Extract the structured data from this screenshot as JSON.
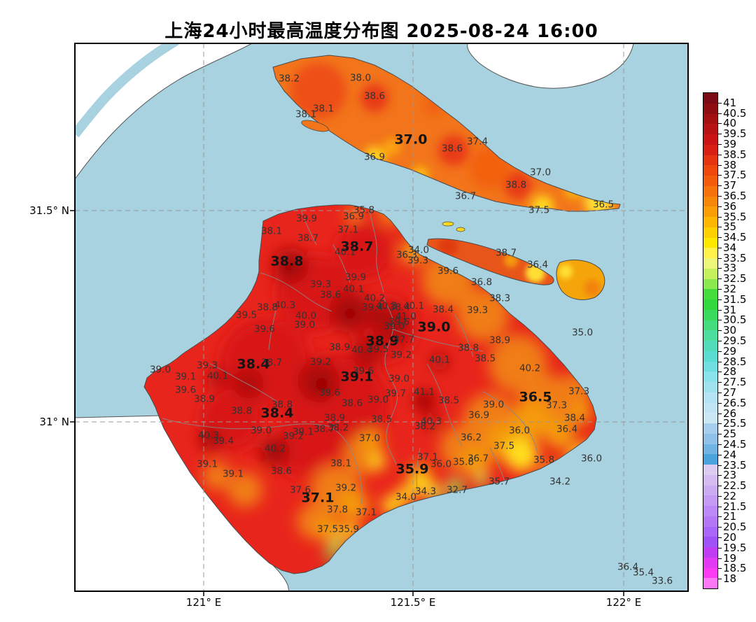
{
  "chart_data": {
    "type": "contour-map",
    "title": "上海24小时最高温度分布图 2025-08-24 16:00",
    "region": "Shanghai",
    "unit": "°C",
    "axes": {
      "x_ticks": [
        {
          "label": "121° E",
          "x": 291
        },
        {
          "label": "121.5° E",
          "x": 590
        },
        {
          "label": "122° E",
          "x": 891
        }
      ],
      "y_ticks": [
        {
          "label": "31.5° N",
          "y": 301
        },
        {
          "label": "31° N",
          "y": 603
        }
      ]
    },
    "colorbar": {
      "min": 18,
      "max": 41,
      "step": 0.5,
      "tick_labels": [
        "41",
        "40.5",
        "40",
        "39.5",
        "39",
        "38.5",
        "38",
        "37.5",
        "37",
        "36.5",
        "36",
        "35.5",
        "35",
        "34.5",
        "34",
        "33.5",
        "33",
        "32.5",
        "32",
        "31.5",
        "31",
        "30.5",
        "30",
        "29.5",
        "29",
        "28.5",
        "28",
        "27.5",
        "27",
        "26.5",
        "26",
        "25.5",
        "25",
        "24.5",
        "24",
        "23.5",
        "23",
        "22.5",
        "22",
        "21.5",
        "21",
        "20.5",
        "20",
        "19.5",
        "19",
        "18.5",
        "18"
      ],
      "colors": [
        "#7a0a14",
        "#8e0d10",
        "#a31010",
        "#b81313",
        "#cb1515",
        "#da2013",
        "#e73410",
        "#ee480d",
        "#f25c0b",
        "#f5730a",
        "#f78708",
        "#fa9e05",
        "#fcb703",
        "#fdd101",
        "#ffe800",
        "#fff24b",
        "#eef878",
        "#c4f05e",
        "#8ae94e",
        "#45dd3b",
        "#30d83d",
        "#3ada5d",
        "#44dc7d",
        "#4ddd9c",
        "#52dcb9",
        "#5bdcd1",
        "#70dfe1",
        "#8ae3ea",
        "#a0e3ef",
        "#b4e3f3",
        "#c2e5f6",
        "#cce8f7",
        "#a6cfee",
        "#8fc2e9",
        "#6fb4e3",
        "#48a4db",
        "#ddccf1",
        "#d5bbf2",
        "#cdabf3",
        "#c59af5",
        "#bd89f6",
        "#b478f7",
        "#aa66f8",
        "#a052f7",
        "#c03df3",
        "#e33af3",
        "#fb3af4",
        "#fc78f7"
      ]
    },
    "colors": {
      "water": "#a8d2df",
      "land_hot": "#e8251c",
      "outside_region": "#ffffff",
      "gridline": "#999999",
      "coastline": "#555555"
    },
    "stations": [
      {
        "t": "38.2",
        "x": 413,
        "y": 113
      },
      {
        "t": "38.0",
        "x": 515,
        "y": 112
      },
      {
        "t": "38.6",
        "x": 535,
        "y": 138
      },
      {
        "t": "38.1",
        "x": 437,
        "y": 164
      },
      {
        "t": "38.1",
        "x": 462,
        "y": 156
      },
      {
        "t": "37.0",
        "x": 587,
        "y": 200,
        "b": 1
      },
      {
        "t": "36.9",
        "x": 535,
        "y": 225
      },
      {
        "t": "38.6",
        "x": 646,
        "y": 213
      },
      {
        "t": "37.4",
        "x": 682,
        "y": 203
      },
      {
        "t": "37.0",
        "x": 772,
        "y": 247
      },
      {
        "t": "38.8",
        "x": 737,
        "y": 265
      },
      {
        "t": "36.7",
        "x": 665,
        "y": 281
      },
      {
        "t": "37.5",
        "x": 770,
        "y": 301
      },
      {
        "t": "36.5",
        "x": 862,
        "y": 293
      },
      {
        "t": "38.7",
        "x": 723,
        "y": 362
      },
      {
        "t": "36.4",
        "x": 768,
        "y": 379
      },
      {
        "t": "35.8",
        "x": 520,
        "y": 301
      },
      {
        "t": "36.9",
        "x": 505,
        "y": 310
      },
      {
        "t": "39.9",
        "x": 438,
        "y": 313
      },
      {
        "t": "37.1",
        "x": 497,
        "y": 329
      },
      {
        "t": "38.1",
        "x": 388,
        "y": 331
      },
      {
        "t": "38.7",
        "x": 440,
        "y": 341
      },
      {
        "t": "38.7",
        "x": 510,
        "y": 353,
        "b": 1
      },
      {
        "t": "40.1",
        "x": 493,
        "y": 361
      },
      {
        "t": "38.8",
        "x": 410,
        "y": 374,
        "b": 1
      },
      {
        "t": "34.0",
        "x": 598,
        "y": 358
      },
      {
        "t": "36.3",
        "x": 581,
        "y": 365
      },
      {
        "t": "39.3",
        "x": 597,
        "y": 373
      },
      {
        "t": "39.6",
        "x": 640,
        "y": 388
      },
      {
        "t": "39.9",
        "x": 508,
        "y": 397
      },
      {
        "t": "39.3",
        "x": 458,
        "y": 407
      },
      {
        "t": "40.1",
        "x": 505,
        "y": 414
      },
      {
        "t": "38.6",
        "x": 472,
        "y": 422
      },
      {
        "t": "36.8",
        "x": 688,
        "y": 404
      },
      {
        "t": "38.3",
        "x": 714,
        "y": 427
      },
      {
        "t": "40.2",
        "x": 535,
        "y": 427
      },
      {
        "t": "39.4",
        "x": 532,
        "y": 440
      },
      {
        "t": "40.3",
        "x": 552,
        "y": 438
      },
      {
        "t": "38.4",
        "x": 571,
        "y": 440
      },
      {
        "t": "40.1",
        "x": 591,
        "y": 438
      },
      {
        "t": "38.4",
        "x": 633,
        "y": 443
      },
      {
        "t": "39.3",
        "x": 682,
        "y": 444
      },
      {
        "t": "41.0",
        "x": 580,
        "y": 453
      },
      {
        "t": "39.6",
        "x": 570,
        "y": 461
      },
      {
        "t": "39.0",
        "x": 563,
        "y": 467
      },
      {
        "t": "39.0",
        "x": 620,
        "y": 468,
        "b": 1
      },
      {
        "t": "38.9",
        "x": 546,
        "y": 488,
        "b": 1
      },
      {
        "t": "37.7",
        "x": 577,
        "y": 486
      },
      {
        "t": "38.9",
        "x": 485,
        "y": 497
      },
      {
        "t": "40.4",
        "x": 517,
        "y": 501
      },
      {
        "t": "39.5",
        "x": 540,
        "y": 500
      },
      {
        "t": "39.2",
        "x": 573,
        "y": 508
      },
      {
        "t": "38.8",
        "x": 669,
        "y": 498
      },
      {
        "t": "40.1",
        "x": 628,
        "y": 515
      },
      {
        "t": "38.5",
        "x": 693,
        "y": 513
      },
      {
        "t": "38.9",
        "x": 714,
        "y": 487
      },
      {
        "t": "39.6",
        "x": 519,
        "y": 531
      },
      {
        "t": "39.1",
        "x": 510,
        "y": 539,
        "b": 1
      },
      {
        "t": "39.0",
        "x": 570,
        "y": 542
      },
      {
        "t": "38.8",
        "x": 382,
        "y": 440
      },
      {
        "t": "40.3",
        "x": 407,
        "y": 437
      },
      {
        "t": "39.5",
        "x": 352,
        "y": 451
      },
      {
        "t": "40.0",
        "x": 437,
        "y": 452
      },
      {
        "t": "39.0",
        "x": 435,
        "y": 465
      },
      {
        "t": "39.6",
        "x": 378,
        "y": 471
      },
      {
        "t": "39.3",
        "x": 296,
        "y": 523
      },
      {
        "t": "38.4",
        "x": 362,
        "y": 521,
        "b": 1
      },
      {
        "t": "38.7",
        "x": 388,
        "y": 519
      },
      {
        "t": "39.2",
        "x": 458,
        "y": 518
      },
      {
        "t": "39.0",
        "x": 229,
        "y": 529
      },
      {
        "t": "39.1",
        "x": 265,
        "y": 539
      },
      {
        "t": "40.1",
        "x": 311,
        "y": 538
      },
      {
        "t": "39.6",
        "x": 265,
        "y": 558
      },
      {
        "t": "38.9",
        "x": 292,
        "y": 571
      },
      {
        "t": "38.8",
        "x": 345,
        "y": 588
      },
      {
        "t": "38.8",
        "x": 403,
        "y": 579
      },
      {
        "t": "38.4",
        "x": 396,
        "y": 591,
        "b": 1
      },
      {
        "t": "38.9",
        "x": 478,
        "y": 598
      },
      {
        "t": "39.0",
        "x": 373,
        "y": 616
      },
      {
        "t": "39.1",
        "x": 433,
        "y": 618
      },
      {
        "t": "39.2",
        "x": 419,
        "y": 624
      },
      {
        "t": "38.7",
        "x": 463,
        "y": 614
      },
      {
        "t": "38.2",
        "x": 483,
        "y": 612
      },
      {
        "t": "40.3",
        "x": 298,
        "y": 623
      },
      {
        "t": "39.4",
        "x": 319,
        "y": 631
      },
      {
        "t": "40.2",
        "x": 393,
        "y": 642
      },
      {
        "t": "39.1",
        "x": 296,
        "y": 664
      },
      {
        "t": "39.1",
        "x": 333,
        "y": 678
      },
      {
        "t": "38.6",
        "x": 402,
        "y": 674
      },
      {
        "t": "39.6",
        "x": 471,
        "y": 562
      },
      {
        "t": "38.6",
        "x": 503,
        "y": 577
      },
      {
        "t": "39.0",
        "x": 540,
        "y": 572
      },
      {
        "t": "39.7",
        "x": 565,
        "y": 563
      },
      {
        "t": "41.1",
        "x": 606,
        "y": 561
      },
      {
        "t": "38.5",
        "x": 641,
        "y": 573
      },
      {
        "t": "38.5",
        "x": 545,
        "y": 600
      },
      {
        "t": "40.3",
        "x": 616,
        "y": 603
      },
      {
        "t": "38.2",
        "x": 607,
        "y": 610
      },
      {
        "t": "37.0",
        "x": 528,
        "y": 627
      },
      {
        "t": "38.1",
        "x": 487,
        "y": 663
      },
      {
        "t": "37.6",
        "x": 429,
        "y": 701
      },
      {
        "t": "39.2",
        "x": 494,
        "y": 698
      },
      {
        "t": "37.1",
        "x": 454,
        "y": 712,
        "b": 1
      },
      {
        "t": "37.8",
        "x": 482,
        "y": 729
      },
      {
        "t": "37.1",
        "x": 523,
        "y": 733
      },
      {
        "t": "37.5",
        "x": 468,
        "y": 757
      },
      {
        "t": "35.9",
        "x": 498,
        "y": 757
      },
      {
        "t": "40.2",
        "x": 757,
        "y": 527
      },
      {
        "t": "39.0",
        "x": 705,
        "y": 579
      },
      {
        "t": "36.9",
        "x": 684,
        "y": 594
      },
      {
        "t": "36.5",
        "x": 765,
        "y": 568,
        "b": 1
      },
      {
        "t": "37.3",
        "x": 827,
        "y": 560
      },
      {
        "t": "37.3",
        "x": 795,
        "y": 580
      },
      {
        "t": "38.4",
        "x": 821,
        "y": 598
      },
      {
        "t": "36.4",
        "x": 810,
        "y": 614
      },
      {
        "t": "36.0",
        "x": 742,
        "y": 616
      },
      {
        "t": "36.2",
        "x": 673,
        "y": 626
      },
      {
        "t": "37.5",
        "x": 720,
        "y": 638
      },
      {
        "t": "36.7",
        "x": 683,
        "y": 656
      },
      {
        "t": "35.8",
        "x": 662,
        "y": 661
      },
      {
        "t": "35.8",
        "x": 777,
        "y": 658
      },
      {
        "t": "36.0",
        "x": 845,
        "y": 656
      },
      {
        "t": "35.7",
        "x": 713,
        "y": 689
      },
      {
        "t": "34.2",
        "x": 800,
        "y": 689
      },
      {
        "t": "35.9",
        "x": 589,
        "y": 671,
        "b": 1
      },
      {
        "t": "37.1",
        "x": 611,
        "y": 654
      },
      {
        "t": "36.0",
        "x": 630,
        "y": 664
      },
      {
        "t": "34.3",
        "x": 608,
        "y": 703
      },
      {
        "t": "34.0",
        "x": 580,
        "y": 711
      },
      {
        "t": "32.7",
        "x": 653,
        "y": 701
      },
      {
        "t": "35.0",
        "x": 832,
        "y": 476
      },
      {
        "t": "36.4",
        "x": 897,
        "y": 811
      },
      {
        "t": "35.4",
        "x": 919,
        "y": 819
      },
      {
        "t": "33.6",
        "x": 946,
        "y": 831
      }
    ]
  }
}
